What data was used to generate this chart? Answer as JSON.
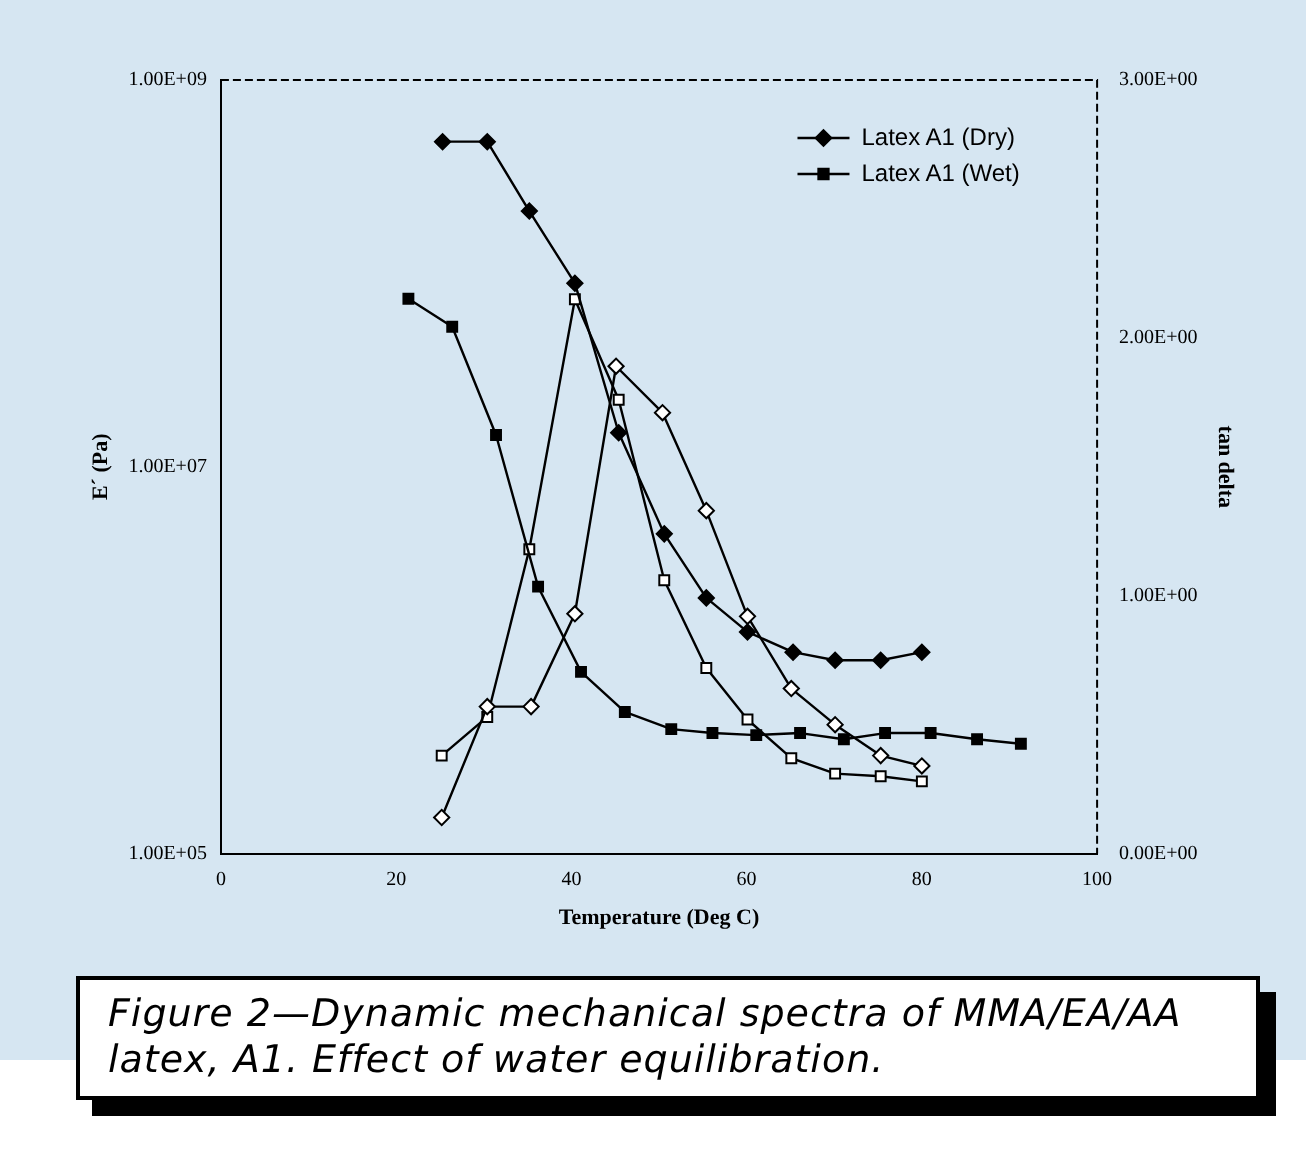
{
  "chart_data": {
    "type": "line",
    "xlabel": "Temperature (Deg C)",
    "ylabel": "E´ (Pa)",
    "y2label": "tan delta",
    "xlim": [
      0,
      100
    ],
    "xticks": [
      0,
      20,
      40,
      60,
      80,
      100
    ],
    "log": "y",
    "ylim": [
      100000,
      1000000000
    ],
    "yticks": [
      {
        "value": 100000,
        "label": "1.00E+05"
      },
      {
        "value": 10000000,
        "label": "1.00E+07"
      },
      {
        "value": 1000000000,
        "label": "1.00E+09"
      }
    ],
    "y2lim": [
      0,
      3
    ],
    "y2ticks": [
      {
        "value": 0,
        "label": "0.00E+00"
      },
      {
        "value": 1,
        "label": "1.00E+00"
      },
      {
        "value": 2,
        "label": "2.00E+00"
      },
      {
        "value": 3,
        "label": "3.00E+00"
      }
    ],
    "grid": false,
    "legend": "top right",
    "line_style": "solid",
    "series": [
      {
        "name": "Latex A1 (Dry)",
        "color": "#000000",
        "marker": "diamond",
        "x": [
          25.3,
          30.4,
          35.2,
          40.4,
          45.4,
          50.6,
          55.4,
          60.1,
          65.3,
          70.1,
          75.3,
          80
        ],
        "values": [
          480000000,
          480000000,
          210000000,
          89000000,
          15000000,
          4500000,
          2100000,
          1400000,
          1100000,
          1000000,
          1000000,
          1100000
        ]
      },
      {
        "name": "Latex A1 (Wet)",
        "color": "#000000",
        "marker": "square",
        "x": [
          21.4,
          26.4,
          31.4,
          36.2,
          41.1,
          46.1,
          51.4,
          56.1,
          61.1,
          66.1,
          71.1,
          75.8,
          81,
          86.3,
          91.3
        ],
        "values": [
          74000000,
          53000000,
          14600000,
          2400000,
          870000,
          540000,
          440000,
          420000,
          410000,
          420000,
          390000,
          420000,
          420000,
          390000,
          370000
        ]
      },
      {
        "color": "#000000",
        "marker": "diamond",
        "axis": "y2",
        "x": [
          25.2,
          30.4,
          35.4,
          40.4,
          45.1,
          50.4,
          55.4,
          60.1,
          65.1,
          70.1,
          75.3,
          80
        ],
        "values": [
          0.14,
          0.57,
          0.57,
          0.93,
          1.89,
          1.71,
          1.33,
          0.92,
          0.64,
          0.5,
          0.38,
          0.34
        ]
      },
      {
        "color": "#000000",
        "marker": "square",
        "axis": "y2",
        "x": [
          25.2,
          30.4,
          35.2,
          40.4,
          45.4,
          50.6,
          55.4,
          60.1,
          65.1,
          70.1,
          75.3,
          80
        ],
        "values": [
          0.38,
          0.53,
          1.18,
          2.15,
          1.76,
          1.06,
          0.72,
          0.52,
          0.37,
          0.31,
          0.3,
          0.28
        ]
      }
    ],
    "annotations": [
      "Figure 2—Dynamic mechanical spectra of MMA/EA/AA latex, A1. Effect of water equilibration."
    ]
  }
}
